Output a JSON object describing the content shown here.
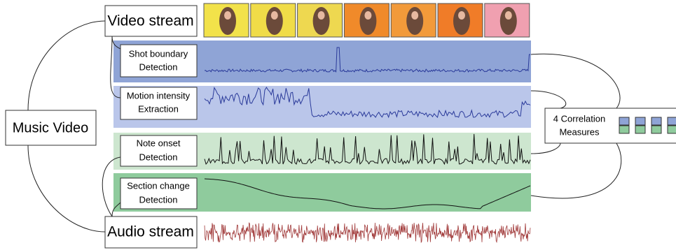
{
  "root": {
    "label": "Music Video"
  },
  "streams": [
    {
      "label": "Video stream"
    },
    {
      "label": "Audio stream"
    }
  ],
  "features": [
    {
      "lines": [
        "Shot boundary",
        "Detection"
      ]
    },
    {
      "lines": [
        "Motion intensity",
        "Extraction"
      ]
    },
    {
      "lines": [
        "Note onset",
        "Detection"
      ]
    },
    {
      "lines": [
        "Section change",
        "Detection"
      ]
    }
  ],
  "output": {
    "lines": [
      "4 Correlation",
      "Measures"
    ]
  }
}
